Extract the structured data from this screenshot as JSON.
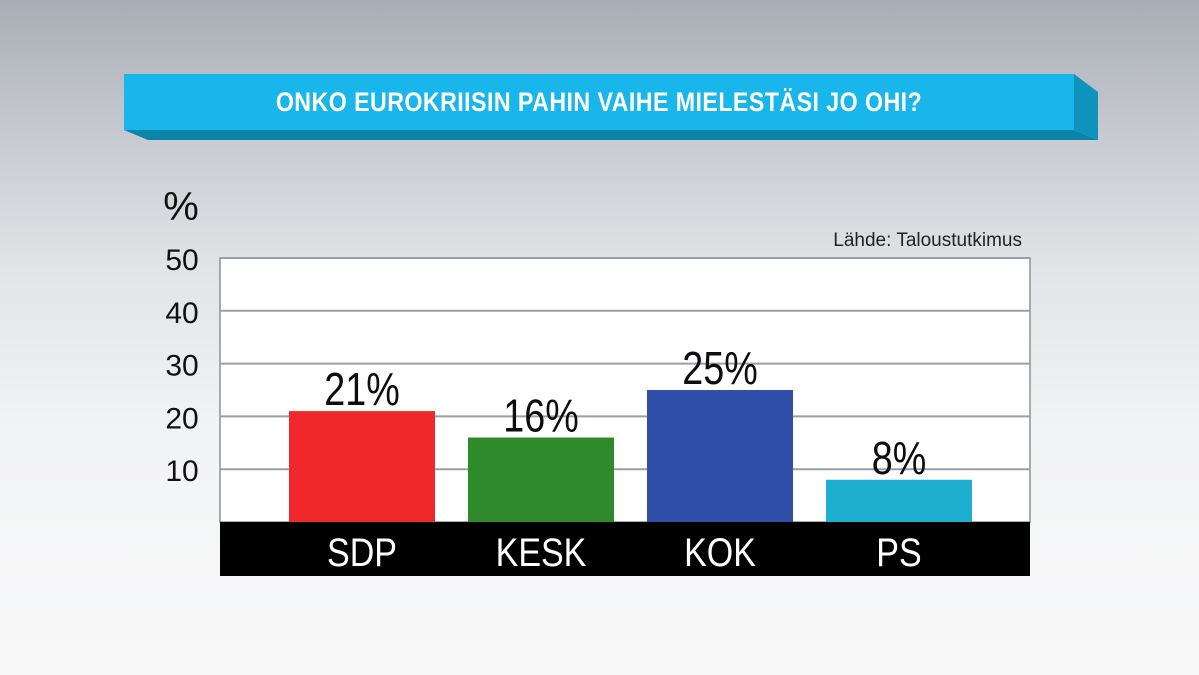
{
  "title": "ONKO EUROKRIISIN PAHIN VAIHE MIELESTÄSI JO OHI?",
  "colors": {
    "banner": "#18b6ea",
    "banner_shadow": "#0b84aa",
    "axis_band": "#000000",
    "gridline": "#9a9ea6"
  },
  "chart_data": {
    "type": "bar",
    "title": "ONKO EUROKRIISIN PAHIN VAIHE MIELESTÄSI JO OHI?",
    "ylabel": "%",
    "source": "Lähde: Taloustutkimus",
    "ylim": [
      0,
      50
    ],
    "yticks": [
      10,
      20,
      30,
      40,
      50
    ],
    "grid": true,
    "categories": [
      "SDP",
      "KESK",
      "KOK",
      "PS"
    ],
    "values": [
      21,
      16,
      25,
      8
    ],
    "value_labels": [
      "21%",
      "16%",
      "25%",
      "8%"
    ],
    "colors": [
      "#f0282a",
      "#2f8a2c",
      "#2f4fa8",
      "#1eaed0"
    ]
  }
}
